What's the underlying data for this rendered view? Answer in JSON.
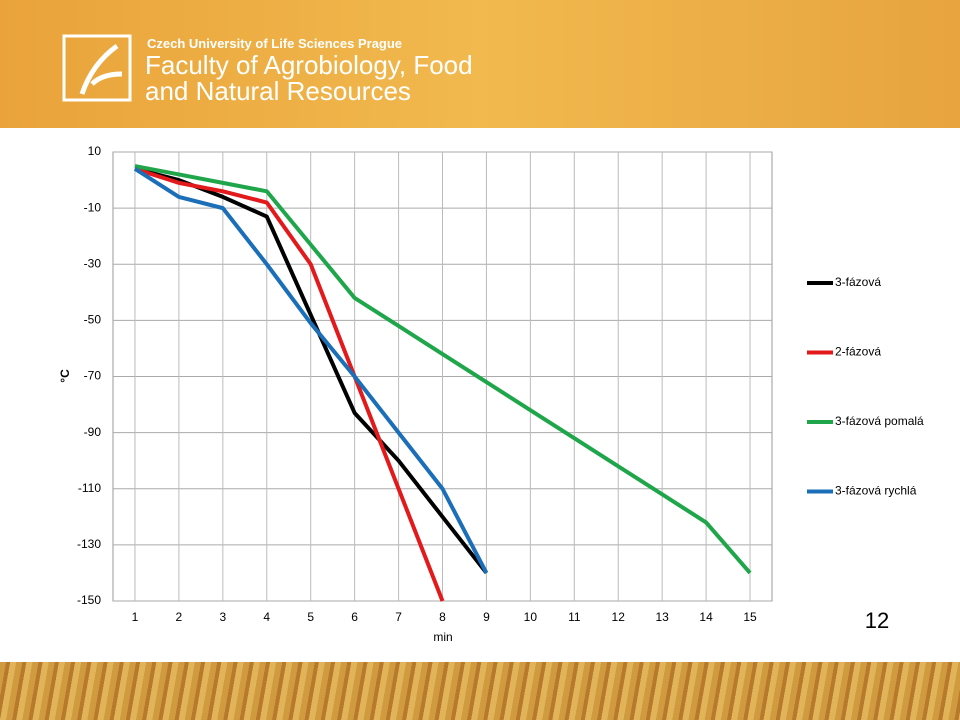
{
  "header": {
    "university": "Czech University of Life Sciences Prague",
    "faculty_line1": "Faculty of Agrobiology, Food",
    "faculty_line2": "and Natural Resources"
  },
  "page_number": "12",
  "chart_data": {
    "type": "line",
    "y_label": "°C",
    "x_label": "min",
    "categories": [
      "1",
      "2",
      "3",
      "4",
      "5",
      "6",
      "7",
      "8",
      "9",
      "10",
      "11",
      "12",
      "13",
      "14",
      "15"
    ],
    "ylim": [
      -150,
      10
    ],
    "yticks": [
      10,
      -10,
      -30,
      -50,
      -70,
      -90,
      -110,
      -130,
      -150
    ],
    "grid": true,
    "legend": "right",
    "series": [
      {
        "name": "3-fázová",
        "color": "#000000",
        "values": [
          4,
          0,
          -6,
          -13,
          -48,
          -83,
          -100,
          -120,
          -140,
          null,
          null,
          null,
          null,
          null,
          null
        ]
      },
      {
        "name": "2-fázová",
        "color": "#e31a1c",
        "values": [
          4,
          -1,
          -4,
          -8,
          -30,
          -70,
          -110,
          -150,
          null,
          null,
          null,
          null,
          null,
          null,
          null
        ]
      },
      {
        "name": "3-fázová pomalá",
        "color": "#1fa64a",
        "values": [
          5,
          2,
          -1,
          -4,
          -23,
          -42,
          -52,
          -62,
          -72,
          -82,
          -92,
          -102,
          -112,
          -122,
          -140
        ]
      },
      {
        "name": "3-fázová rychlá",
        "color": "#1a6fb8",
        "values": [
          4,
          -6,
          -10,
          -30,
          -51,
          -70,
          -90,
          -110,
          -140,
          null,
          null,
          null,
          null,
          null,
          null
        ]
      }
    ]
  }
}
